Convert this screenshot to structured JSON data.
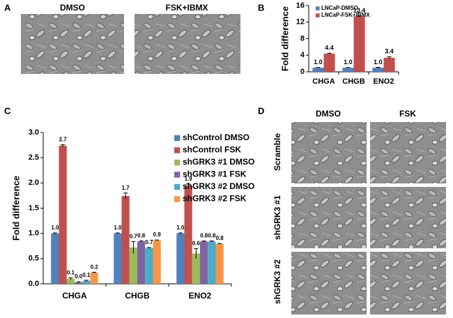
{
  "panels": {
    "labels": [
      "A",
      "B",
      "C",
      "D"
    ]
  },
  "panel_a": {
    "columns": [
      "DMSO",
      "FSK+IBMX"
    ]
  },
  "panel_d": {
    "columns": [
      "DMSO",
      "FSK"
    ],
    "rows": [
      "Scramble",
      "shGRK3 #1",
      "shGRK3 #2"
    ]
  },
  "chart_data": [
    {
      "type": "bar",
      "y_label": "Fold difference",
      "categories": [
        "CHGA",
        "CHGB",
        "ENO2"
      ],
      "series": [
        {
          "name": "LNCaP-DMSO",
          "color": "#4f81bd",
          "values": [
            1,
            1,
            1
          ],
          "value_labels": [
            "1.0",
            "1.0",
            "1.0"
          ],
          "errors": [
            0.05,
            0.05,
            0.1
          ]
        },
        {
          "name": "LNCaP-FSK+IBMX",
          "color": "#c0504d",
          "values": [
            4.4,
            13.4,
            3.4
          ],
          "errors": [
            0.1,
            0.1,
            0.25
          ]
        }
      ],
      "ylim": [
        0,
        16
      ],
      "yticks": [
        0,
        4,
        8,
        12,
        16
      ],
      "legend": "upper left"
    },
    {
      "type": "bar",
      "y_label": "Fold difference",
      "categories": [
        "CHGA",
        "CHGB",
        "ENO2"
      ],
      "series": [
        {
          "name": "shControl DMSO",
          "color": "#4f81bd",
          "values": [
            1,
            1,
            1
          ],
          "value_labels": [
            "1.0",
            "1.0",
            "1.0"
          ],
          "errors": [
            0.01,
            0.01,
            0.01
          ]
        },
        {
          "name": "shControl FSK",
          "color": "#c0504d",
          "values": [
            2.74,
            1.74,
            1.94
          ],
          "value_labels": [
            "2.7",
            "1.7",
            "1.9"
          ],
          "errors": [
            0.02,
            0.06,
            0.04
          ]
        },
        {
          "name": "shGRK3 #1 DMSO",
          "color": "#9bbb59",
          "values": [
            0.1,
            0.72,
            0.6
          ],
          "value_labels": [
            "0.1",
            "0.7",
            "0.6"
          ],
          "errors": [
            0.02,
            0.12,
            0.1
          ]
        },
        {
          "name": "shGRK3 #1 FSK",
          "color": "#8064a2",
          "values": [
            0.03,
            0.84,
            0.84
          ],
          "value_labels": [
            "0.0",
            "0.8",
            "0.8"
          ],
          "errors": [
            0.01,
            0.01,
            0.01
          ]
        },
        {
          "name": "shGRK3 #2 DMSO",
          "color": "#4bacc6",
          "values": [
            0.06,
            0.71,
            0.84
          ],
          "value_labels": [
            "0.1",
            "0.7",
            "0.8"
          ],
          "errors": [
            0.01,
            0.01,
            0.01
          ]
        },
        {
          "name": "shGRK3 #2 FSK",
          "color": "#f79646",
          "values": [
            0.22,
            0.86,
            0.79
          ],
          "value_labels": [
            "0.2",
            "0.9",
            "0.8"
          ],
          "errors": [
            0.01,
            0.01,
            0.01
          ]
        }
      ],
      "ylim": [
        0,
        3
      ],
      "yticks": [
        {
          "value": 0,
          "label": "0.0"
        },
        {
          "value": 0.5,
          "label": "0.5"
        },
        {
          "value": 1,
          "label": "1.0"
        },
        {
          "value": 1.5,
          "label": "1.5"
        },
        {
          "value": 2,
          "label": "2.0"
        },
        {
          "value": 2.5,
          "label": "2.5"
        },
        {
          "value": 3,
          "label": "3.0"
        }
      ],
      "legend": "right"
    }
  ]
}
